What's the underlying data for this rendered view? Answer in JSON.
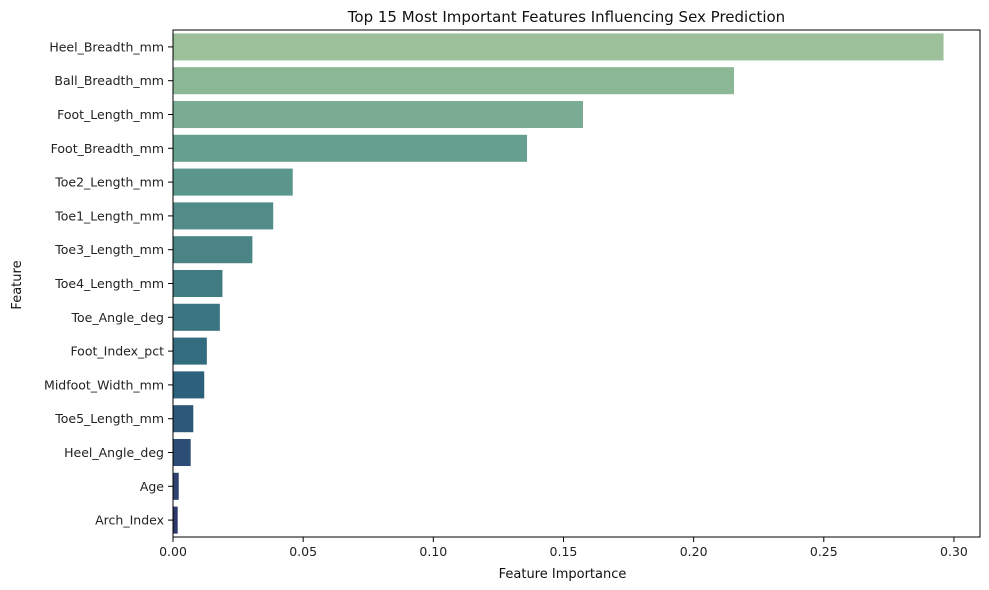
{
  "chart_data": {
    "type": "bar",
    "orientation": "horizontal",
    "title": "Top 15 Most Important Features Influencing Sex Prediction",
    "xlabel": "Feature Importance",
    "ylabel": "Feature",
    "categories": [
      "Heel_Breadth_mm",
      "Ball_Breadth_mm",
      "Foot_Length_mm",
      "Foot_Breadth_mm",
      "Toe2_Length_mm",
      "Toe1_Length_mm",
      "Toe3_Length_mm",
      "Toe4_Length_mm",
      "Toe_Angle_deg",
      "Foot_Index_pct",
      "Midfoot_Width_mm",
      "Toe5_Length_mm",
      "Heel_Angle_deg",
      "Age",
      "Arch_Index"
    ],
    "values": [
      0.296,
      0.2155,
      0.1575,
      0.136,
      0.046,
      0.0385,
      0.0305,
      0.019,
      0.018,
      0.013,
      0.012,
      0.0078,
      0.0068,
      0.0022,
      0.0018
    ],
    "colors": [
      "#9bc09a",
      "#8cb797",
      "#7aab93",
      "#68a08f",
      "#5a968b",
      "#518c88",
      "#4a8485",
      "#427c83",
      "#3a7480",
      "#336c7e",
      "#2d617b",
      "#2c5779",
      "#2e4d76",
      "#2e4270",
      "#2d3968"
    ],
    "xlim": [
      0,
      0.31
    ],
    "xticks": [
      "0.00",
      "0.05",
      "0.10",
      "0.15",
      "0.20",
      "0.25",
      "0.30"
    ],
    "grid": false,
    "legend": "none"
  }
}
